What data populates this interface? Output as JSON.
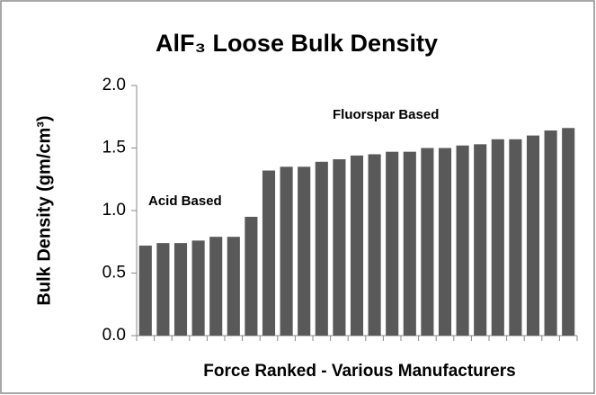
{
  "chart_data": {
    "type": "bar",
    "title": "AlF₃ Loose Bulk Density",
    "x_label": "Force Ranked - Various Manufacturers",
    "y_label": "Bulk Density (gm/cm³)",
    "annotations": [
      "Acid Based",
      "Fluorspar Based"
    ],
    "categories": [
      null,
      null,
      null,
      null,
      null,
      null,
      null,
      null,
      null,
      null,
      null,
      null,
      null,
      null,
      null,
      null,
      null,
      null,
      null,
      null,
      null,
      null,
      null,
      null,
      null
    ],
    "values": [
      0.72,
      0.74,
      0.74,
      0.76,
      0.79,
      0.79,
      0.95,
      1.32,
      1.35,
      1.35,
      1.39,
      1.41,
      1.44,
      1.45,
      1.47,
      1.47,
      1.5,
      1.5,
      1.52,
      1.53,
      1.57,
      1.57,
      1.6,
      1.64,
      1.66
    ],
    "color": "#595959",
    "ylim": [
      0,
      2
    ],
    "yticks": [
      {
        "value": 0,
        "label": "0.0"
      },
      0.5,
      {
        "value": 1,
        "label": "1.0"
      },
      1.5,
      {
        "value": 2,
        "label": "2.0"
      }
    ],
    "grid": false
  }
}
